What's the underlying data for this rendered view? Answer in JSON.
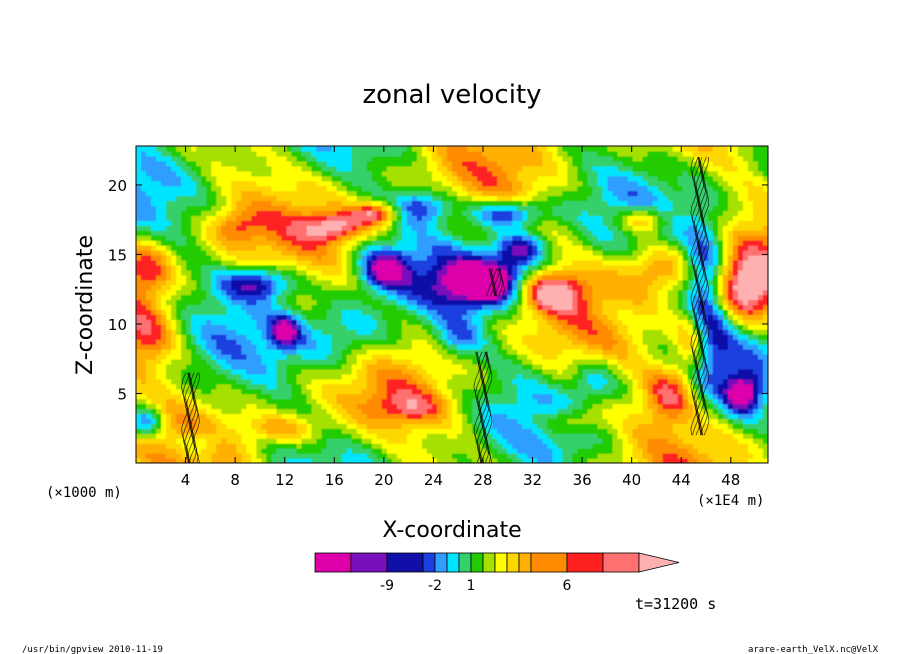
{
  "chart_data": {
    "type": "heatmap",
    "title": "zonal velocity",
    "xlabel": "X-coordinate",
    "ylabel": "Z-coordinate",
    "x_unit": "(×1E4 m)",
    "y_unit": "(×1000 m)",
    "xlim": [
      0,
      51
    ],
    "ylim": [
      0,
      22.8
    ],
    "x_ticks": [
      4,
      8,
      12,
      16,
      20,
      24,
      28,
      32,
      36,
      40,
      44,
      48
    ],
    "y_ticks": [
      5,
      10,
      15,
      20
    ],
    "colorbar": {
      "colors": [
        "#dd00aa",
        "#7a10bb",
        "#1010a8",
        "#1a3fe0",
        "#2f9fff",
        "#00e5ff",
        "#36d06a",
        "#22cc00",
        "#a6e000",
        "#ffff00",
        "#ffd700",
        "#ffb000",
        "#ff8c00",
        "#ff2020",
        "#ff7070",
        "#ffb0b0"
      ],
      "tick_labels": [
        "-9",
        "-2",
        "1",
        "6"
      ]
    },
    "time_label": "t=31200 s"
  },
  "footer": {
    "left": "/usr/bin/gpview   2010-11-19",
    "right": "arare-earth_VelX.nc@VelX"
  }
}
